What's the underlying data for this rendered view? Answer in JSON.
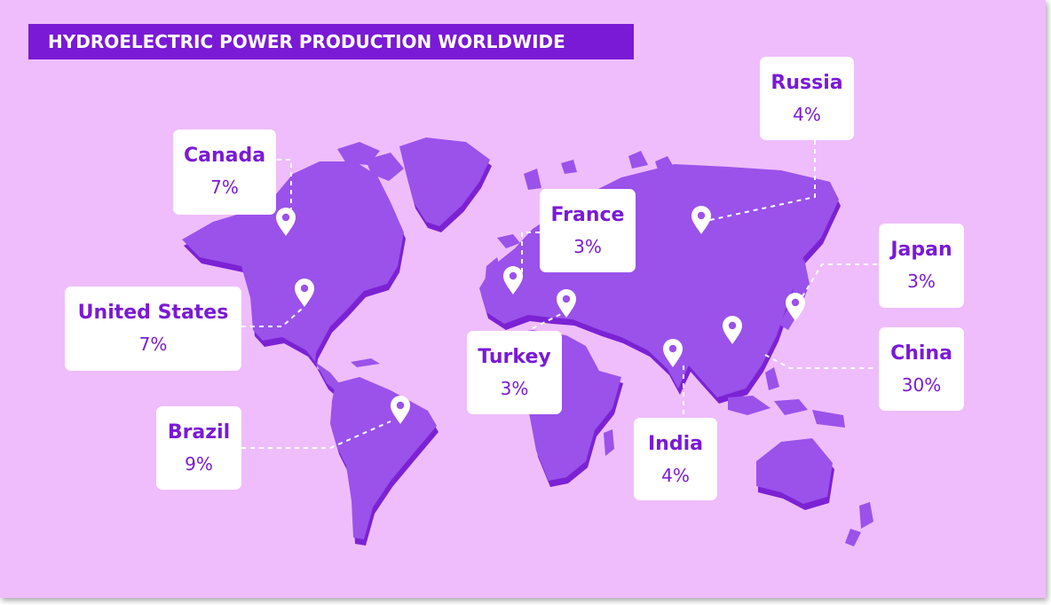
{
  "title": "HYDROELECTRIC POWER PRODUCTION WORLDWIDE",
  "colors": {
    "background": "#efbdfb",
    "accent": "#7a1ad6",
    "land_top": "#9a52ea",
    "land_side": "#7b22d4",
    "card": "#ffffff"
  },
  "icons": [
    "map-pin-icon"
  ],
  "locations": [
    {
      "key": "canada",
      "name": "Canada",
      "value": "7%"
    },
    {
      "key": "united_states",
      "name": "United States",
      "value": "7%"
    },
    {
      "key": "brazil",
      "name": "Brazil",
      "value": "9%"
    },
    {
      "key": "france",
      "name": "France",
      "value": "3%"
    },
    {
      "key": "turkey",
      "name": "Turkey",
      "value": "3%"
    },
    {
      "key": "russia",
      "name": "Russia",
      "value": "4%"
    },
    {
      "key": "india",
      "name": "India",
      "value": "4%"
    },
    {
      "key": "china",
      "name": "China",
      "value": "30%"
    },
    {
      "key": "japan",
      "name": "Japan",
      "value": "3%"
    }
  ]
}
